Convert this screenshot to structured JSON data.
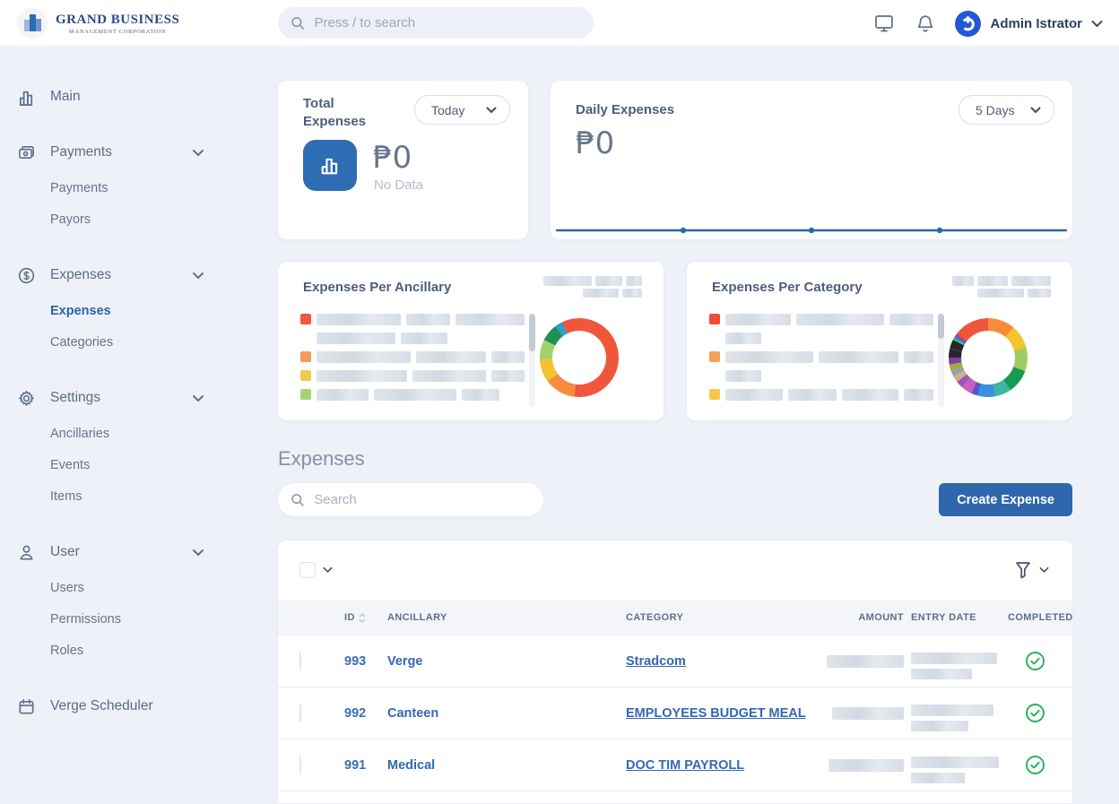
{
  "header": {
    "logo_title": "GRAND BUSINESS",
    "logo_subtitle": "MANAGEMENT CORPORATION",
    "search_placeholder": "Press / to search",
    "user_name": "Admin Istrator"
  },
  "sidebar": {
    "items": [
      {
        "label": "Main",
        "icon": "bar-chart"
      },
      {
        "label": "Payments",
        "icon": "wallet",
        "children": [
          "Payments",
          "Payors"
        ]
      },
      {
        "label": "Expenses",
        "icon": "dollar-circle",
        "children": [
          "Expenses",
          "Categories"
        ],
        "active_child": "Expenses"
      },
      {
        "label": "Settings",
        "icon": "gear",
        "children": [
          "Ancillaries",
          "Events",
          "Items"
        ]
      },
      {
        "label": "User",
        "icon": "person",
        "children": [
          "Users",
          "Permissions",
          "Roles"
        ]
      },
      {
        "label": "Verge Scheduler",
        "icon": "calendar"
      }
    ]
  },
  "stats": {
    "total": {
      "title": "Total Expenses",
      "period": "Today",
      "value": "₱0",
      "empty_label": "No Data"
    },
    "daily": {
      "title": "Daily Expenses",
      "period": "5 Days",
      "value": "₱0"
    }
  },
  "charts": {
    "ancillary": {
      "title": "Expenses Per Ancillary",
      "type": "donut",
      "segments": [
        {
          "color": "#f0563b",
          "from": 0,
          "to": 187
        },
        {
          "color": "#f68c3e",
          "from": 187,
          "to": 233
        },
        {
          "color": "#f2c331",
          "from": 233,
          "to": 268
        },
        {
          "color": "#a2d06b",
          "from": 268,
          "to": 297
        },
        {
          "color": "#1d9150",
          "from": 297,
          "to": 322
        },
        {
          "color": "#2d9fc9",
          "from": 322,
          "to": 334
        },
        {
          "color": "#f0563b",
          "from": 334,
          "to": 360
        }
      ],
      "legend": [
        {
          "color": "#ef5742",
          "bars": [
            118,
            62,
            96
          ]
        },
        {
          "color": null,
          "bars": [
            88,
            52
          ]
        },
        {
          "color": "#f59a57",
          "bars": [
            118,
            88,
            42
          ]
        },
        {
          "color": "#f2c94c",
          "bars": [
            108,
            88,
            40
          ]
        },
        {
          "color": "#a5d46f",
          "bars": [
            58,
            92,
            42
          ]
        }
      ],
      "scroll_thumb": 42
    },
    "category": {
      "title": "Expenses Per Category",
      "type": "donut",
      "segments": [
        {
          "color": "#f68b3b",
          "from": 0,
          "to": 40
        },
        {
          "color": "#f2c531",
          "from": 40,
          "to": 75
        },
        {
          "color": "#9fcd63",
          "from": 75,
          "to": 110
        },
        {
          "color": "#189a52",
          "from": 110,
          "to": 145
        },
        {
          "color": "#3eb5a6",
          "from": 145,
          "to": 170
        },
        {
          "color": "#3b8fe0",
          "from": 170,
          "to": 196
        },
        {
          "color": "#5b57c9",
          "from": 196,
          "to": 205
        },
        {
          "color": "#c95fc5",
          "from": 205,
          "to": 222
        },
        {
          "color": "#9b59b6",
          "from": 222,
          "to": 232
        },
        {
          "color": "#c9b18f",
          "from": 232,
          "to": 242
        },
        {
          "color": "#9aa0a8",
          "from": 242,
          "to": 251
        },
        {
          "color": "#a8a83c",
          "from": 251,
          "to": 260
        },
        {
          "color": "#7d3fa8",
          "from": 260,
          "to": 270
        },
        {
          "color": "#262626",
          "from": 270,
          "to": 282
        },
        {
          "color": "#3a3a3a",
          "from": 282,
          "to": 285
        },
        {
          "color": "#262626",
          "from": 285,
          "to": 297
        },
        {
          "color": "#2ecc71",
          "from": 297,
          "to": 300
        },
        {
          "color": "#2e86de",
          "from": 300,
          "to": 303
        },
        {
          "color": "#8e44ad",
          "from": 303,
          "to": 306
        },
        {
          "color": "#e74c3c",
          "from": 306,
          "to": 309
        },
        {
          "color": "#f0543c",
          "from": 309,
          "to": 360
        }
      ],
      "legend": [
        {
          "color": "#ee4c38",
          "bars": [
            92,
            122,
            62
          ]
        },
        {
          "color": null,
          "bars": [
            40
          ]
        },
        {
          "color": "#f5a058",
          "bars": [
            118,
            108,
            40
          ]
        },
        {
          "color": null,
          "bars": [
            40
          ]
        },
        {
          "color": "#f2c94c",
          "bars": [
            78,
            66,
            78,
            40
          ]
        }
      ],
      "scroll_thumb": 28
    }
  },
  "expenses_section": {
    "heading": "Expenses",
    "search_placeholder": "Search",
    "create_button": "Create Expense"
  },
  "table": {
    "columns": {
      "id": "ID",
      "ancillary": "ANCILLARY",
      "category": "CATEGORY",
      "amount": "AMOUNT",
      "entry_date": "ENTRY DATE",
      "completed": "COMPLETED"
    },
    "rows": [
      {
        "id": "993",
        "ancillary": "Verge",
        "category": "Stradcom",
        "amount_redacted": true,
        "entry_date_redacted": true,
        "completed": true
      },
      {
        "id": "992",
        "ancillary": "Canteen",
        "category": "EMPLOYEES BUDGET MEAL",
        "amount_redacted": true,
        "entry_date_redacted": true,
        "completed": true
      },
      {
        "id": "991",
        "ancillary": "Medical",
        "category": "DOC TIM PAYROLL",
        "amount_redacted": true,
        "entry_date_redacted": true,
        "completed": true
      }
    ]
  },
  "colors": {
    "accent_blue": "#2f67ac",
    "link_blue": "#3467b2",
    "active_blue": "#2b62ae",
    "success_green": "#26b05a",
    "line_chart_blue": "#2d66b0"
  }
}
